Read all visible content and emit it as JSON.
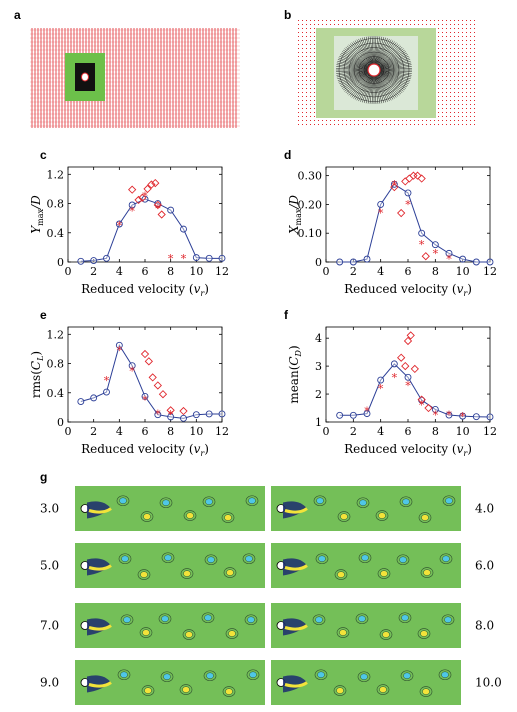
{
  "panel_labels": {
    "a": "a",
    "b": "b",
    "c": "c",
    "d": "d",
    "e": "e",
    "f": "f",
    "g": "g"
  },
  "colors": {
    "mesh_red": "#e0282e",
    "mesh_green": "#6cc04a",
    "mesh_black": "#111111",
    "mesh_white": "#ffffff",
    "full_model": "#2c3f97",
    "experiment_diamond": "#e0282e",
    "experiment_star": "#e0282e",
    "flow_bg": "#74bf58"
  },
  "chart_data": [
    {
      "panel": "c",
      "type": "line",
      "xlabel": "Reduced velocity (v_r)",
      "ylabel": "Y_max/D",
      "xlim": [
        0,
        12
      ],
      "ylim": [
        0,
        1.3
      ],
      "xticks": [
        "0",
        "2",
        "4",
        "6",
        "8",
        "10",
        "12"
      ],
      "yticks": [
        "0",
        "0.4",
        "0.8",
        "1.2"
      ],
      "ytick_values": [
        0,
        0.4,
        0.8,
        1.2
      ],
      "series": [
        {
          "marker": "circle-line",
          "x": [
            1,
            2,
            3,
            4,
            5,
            6,
            7,
            8,
            9,
            10,
            11,
            12
          ],
          "y": [
            0.01,
            0.02,
            0.05,
            0.52,
            0.78,
            0.86,
            0.8,
            0.71,
            0.45,
            0.06,
            0.05,
            0.05
          ]
        },
        {
          "marker": "diamond",
          "x": [
            5,
            5.5,
            5.8,
            6.2,
            6.5,
            6.8,
            7.0,
            7.3
          ],
          "y": [
            0.99,
            0.85,
            0.88,
            1.0,
            1.06,
            1.08,
            0.78,
            0.65
          ]
        },
        {
          "marker": "star",
          "x": [
            4,
            5,
            6,
            7,
            8,
            9
          ],
          "y": [
            0.5,
            0.7,
            0.9,
            0.73,
            0.05,
            0.05
          ]
        }
      ]
    },
    {
      "panel": "d",
      "type": "line",
      "xlabel": "Reduced velocity (v_r)",
      "ylabel": "X_max/D",
      "xlim": [
        0,
        12
      ],
      "ylim": [
        0,
        0.33
      ],
      "xticks": [
        "0",
        "2",
        "4",
        "6",
        "8",
        "10",
        "12"
      ],
      "yticks": [
        "0",
        "0.10",
        "0.20",
        "0.30"
      ],
      "ytick_values": [
        0,
        0.1,
        0.2,
        0.3
      ],
      "series": [
        {
          "marker": "circle-line",
          "x": [
            1,
            2,
            3,
            4,
            5,
            6,
            7,
            8,
            9,
            10,
            11,
            12
          ],
          "y": [
            0.0,
            0.0,
            0.01,
            0.2,
            0.27,
            0.24,
            0.1,
            0.06,
            0.03,
            0.01,
            0.0,
            0.0
          ]
        },
        {
          "marker": "diamond",
          "x": [
            5,
            5.5,
            5.8,
            6.1,
            6.4,
            6.7,
            7.0,
            7.3
          ],
          "y": [
            0.26,
            0.17,
            0.28,
            0.29,
            0.3,
            0.3,
            0.29,
            0.02
          ]
        },
        {
          "marker": "star",
          "x": [
            4,
            5,
            6,
            7,
            8,
            9
          ],
          "y": [
            0.17,
            0.27,
            0.2,
            0.06,
            0.03,
            0.01
          ]
        }
      ]
    },
    {
      "panel": "e",
      "type": "line",
      "xlabel": "Reduced velocity (v_r)",
      "ylabel": "rms(C_L)",
      "xlim": [
        0,
        12
      ],
      "ylim": [
        0,
        1.3
      ],
      "xticks": [
        "0",
        "2",
        "4",
        "6",
        "8",
        "10",
        "12"
      ],
      "yticks": [
        "0",
        "0.4",
        "0.8",
        "1.2"
      ],
      "ytick_values": [
        0,
        0.4,
        0.8,
        1.2
      ],
      "series": [
        {
          "marker": "circle-line",
          "x": [
            1,
            2,
            3,
            4,
            5,
            6,
            7,
            8,
            9,
            10,
            11,
            12
          ],
          "y": [
            0.28,
            0.33,
            0.41,
            1.05,
            0.77,
            0.35,
            0.1,
            0.07,
            0.05,
            0.1,
            0.11,
            0.11
          ]
        },
        {
          "marker": "diamond",
          "x": [
            6,
            6.3,
            6.6,
            7.0,
            7.4,
            8,
            9
          ],
          "y": [
            0.93,
            0.83,
            0.61,
            0.5,
            0.38,
            0.16,
            0.15
          ]
        },
        {
          "marker": "star",
          "x": [
            3,
            4,
            5,
            6,
            7,
            8
          ],
          "y": [
            0.57,
            0.98,
            0.7,
            0.3,
            0.11,
            0.1
          ]
        }
      ]
    },
    {
      "panel": "f",
      "type": "line",
      "xlabel": "Reduced velocity (v_r)",
      "ylabel": "mean(C_D)",
      "xlim": [
        0,
        12
      ],
      "ylim": [
        1,
        4.4
      ],
      "xticks": [
        "0",
        "2",
        "4",
        "6",
        "8",
        "10",
        "12"
      ],
      "yticks": [
        "1",
        "2",
        "3",
        "4"
      ],
      "ytick_values": [
        1,
        2,
        3,
        4
      ],
      "series": [
        {
          "marker": "circle-line",
          "x": [
            1,
            2,
            3,
            4,
            5,
            6,
            7,
            8,
            9,
            10,
            11,
            12
          ],
          "y": [
            1.24,
            1.24,
            1.3,
            2.5,
            3.08,
            2.6,
            1.78,
            1.45,
            1.25,
            1.21,
            1.19,
            1.18
          ]
        },
        {
          "marker": "diamond",
          "x": [
            5.5,
            5.8,
            6.0,
            6.2,
            6.5,
            7.0,
            7.5
          ],
          "y": [
            3.3,
            3.0,
            3.9,
            4.1,
            2.9,
            1.8,
            1.5
          ]
        },
        {
          "marker": "star",
          "x": [
            3,
            4,
            5,
            6,
            7,
            8,
            9,
            10
          ],
          "y": [
            1.4,
            2.2,
            2.6,
            2.3,
            1.6,
            1.25,
            1.25,
            1.2
          ]
        }
      ]
    }
  ],
  "vortex_panels": {
    "left_labels": [
      "3.0",
      "5.0",
      "7.0",
      "9.0"
    ],
    "right_labels": [
      "4.0",
      "6.0",
      "8.0",
      "10.0"
    ]
  }
}
